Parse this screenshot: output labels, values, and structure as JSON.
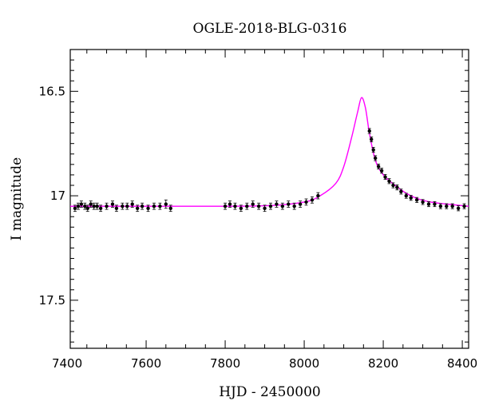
{
  "chart_data": {
    "type": "scatter",
    "title": "OGLE-2018-BLG-0316",
    "xlabel": "HJD - 2450000",
    "ylabel": "I magnitude",
    "xlim": [
      7408,
      8416
    ],
    "ylim": [
      17.73,
      16.3
    ],
    "y_inverted": true,
    "grid": false,
    "xticks": [
      7400,
      7600,
      7800,
      8000,
      8200,
      8400
    ],
    "xtick_labels": [
      "7400",
      "7600",
      "7800",
      "8000",
      "8200",
      "8400"
    ],
    "yticks": [
      16.5,
      17,
      17.5
    ],
    "ytick_labels": [
      "16.5",
      "17",
      "17.5"
    ],
    "model": {
      "name": "",
      "color": "#ff00ff",
      "baseline_mag": 17.05,
      "peak_mag": 16.53,
      "t0": 8145,
      "x": [
        7408,
        7700,
        7900,
        8000,
        8040,
        8080,
        8100,
        8120,
        8135,
        8145,
        8155,
        8165,
        8180,
        8200,
        8230,
        8270,
        8320,
        8416
      ],
      "y": [
        17.05,
        17.05,
        17.048,
        17.03,
        17.0,
        16.94,
        16.86,
        16.72,
        16.6,
        16.53,
        16.58,
        16.7,
        16.83,
        16.9,
        16.95,
        17.0,
        17.03,
        17.05
      ]
    },
    "series": [
      {
        "name": "",
        "marker_color": "#000000",
        "x": [
          7420,
          7428,
          7436,
          7445,
          7452,
          7460,
          7468,
          7476,
          7485,
          7500,
          7515,
          7525,
          7540,
          7552,
          7565,
          7578,
          7590,
          7605,
          7620,
          7635,
          7650,
          7662,
          7800,
          7812,
          7825,
          7840,
          7855,
          7870,
          7885,
          7900,
          7915,
          7930,
          7945,
          7960,
          7975,
          7990,
          8005,
          8020,
          8035,
          8165,
          8170,
          8175,
          8180,
          8188,
          8196,
          8205,
          8215,
          8225,
          8235,
          8245,
          8258,
          8270,
          8285,
          8300,
          8315,
          8330,
          8345,
          8360,
          8375,
          8390,
          8405
        ],
        "y": [
          17.06,
          17.05,
          17.04,
          17.05,
          17.06,
          17.04,
          17.05,
          17.05,
          17.06,
          17.05,
          17.04,
          17.06,
          17.05,
          17.05,
          17.04,
          17.06,
          17.05,
          17.06,
          17.05,
          17.05,
          17.04,
          17.06,
          17.05,
          17.04,
          17.05,
          17.06,
          17.05,
          17.04,
          17.05,
          17.06,
          17.05,
          17.04,
          17.05,
          17.04,
          17.05,
          17.04,
          17.03,
          17.02,
          17.0,
          16.69,
          16.73,
          16.78,
          16.82,
          16.86,
          16.88,
          16.91,
          16.93,
          16.95,
          16.96,
          16.98,
          17.0,
          17.01,
          17.02,
          17.03,
          17.04,
          17.04,
          17.05,
          17.05,
          17.05,
          17.06,
          17.05
        ],
        "err": [
          0.015,
          0.015,
          0.015,
          0.015,
          0.015,
          0.015,
          0.015,
          0.015,
          0.015,
          0.015,
          0.015,
          0.015,
          0.015,
          0.015,
          0.015,
          0.015,
          0.015,
          0.015,
          0.015,
          0.015,
          0.02,
          0.015,
          0.015,
          0.015,
          0.015,
          0.015,
          0.015,
          0.015,
          0.015,
          0.015,
          0.015,
          0.015,
          0.015,
          0.015,
          0.015,
          0.015,
          0.015,
          0.015,
          0.015,
          0.012,
          0.012,
          0.012,
          0.012,
          0.012,
          0.012,
          0.012,
          0.012,
          0.012,
          0.012,
          0.012,
          0.012,
          0.012,
          0.012,
          0.012,
          0.012,
          0.012,
          0.012,
          0.012,
          0.012,
          0.012,
          0.012
        ]
      }
    ]
  }
}
